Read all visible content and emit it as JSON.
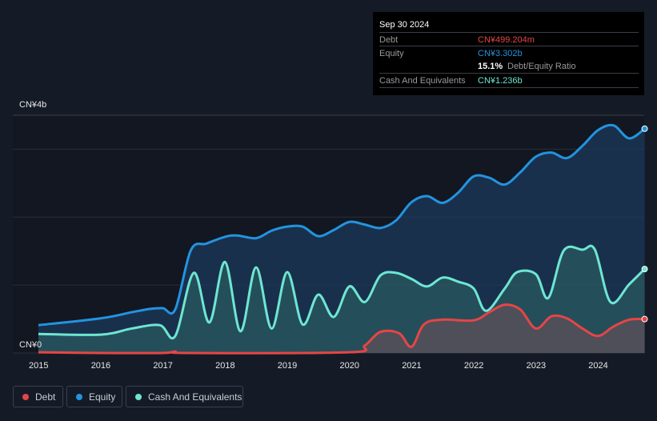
{
  "tooltip": {
    "date": "Sep 30 2024",
    "debt_label": "Debt",
    "debt_value": "CN¥499.204m",
    "equity_label": "Equity",
    "equity_value": "CN¥3.302b",
    "ratio_value": "15.1%",
    "ratio_label": "Debt/Equity Ratio",
    "cash_label": "Cash And Equivalents",
    "cash_value": "CN¥1.236b"
  },
  "colors": {
    "debt": "#e64545",
    "equity": "#2394df",
    "cash": "#6ee6d2"
  },
  "chart_data": {
    "type": "area",
    "y_top_label": "CN¥4b",
    "y_zero_label": "CN¥0",
    "ylim": [
      0,
      3.5
    ],
    "xlim": [
      2015,
      2024.75
    ],
    "x_ticks": [
      "2015",
      "2016",
      "2017",
      "2018",
      "2019",
      "2020",
      "2021",
      "2022",
      "2023",
      "2024"
    ],
    "legend": [
      "Debt",
      "Equity",
      "Cash And Equivalents"
    ],
    "series": [
      {
        "name": "Equity",
        "key": "equity",
        "points": [
          [
            2015,
            0.41
          ],
          [
            2016,
            0.51
          ],
          [
            2016.5,
            0.6
          ],
          [
            2016.8,
            0.65
          ],
          [
            2017,
            0.66
          ],
          [
            2017.2,
            0.64
          ],
          [
            2017.45,
            1.51
          ],
          [
            2017.7,
            1.61
          ],
          [
            2018,
            1.71
          ],
          [
            2018.2,
            1.73
          ],
          [
            2018.5,
            1.69
          ],
          [
            2018.75,
            1.8
          ],
          [
            2019,
            1.86
          ],
          [
            2019.25,
            1.86
          ],
          [
            2019.5,
            1.72
          ],
          [
            2019.75,
            1.81
          ],
          [
            2020,
            1.93
          ],
          [
            2020.25,
            1.89
          ],
          [
            2020.5,
            1.84
          ],
          [
            2020.75,
            1.95
          ],
          [
            2021,
            2.22
          ],
          [
            2021.25,
            2.31
          ],
          [
            2021.5,
            2.21
          ],
          [
            2021.75,
            2.36
          ],
          [
            2022,
            2.6
          ],
          [
            2022.25,
            2.58
          ],
          [
            2022.5,
            2.48
          ],
          [
            2022.75,
            2.66
          ],
          [
            2023,
            2.89
          ],
          [
            2023.25,
            2.95
          ],
          [
            2023.5,
            2.87
          ],
          [
            2023.75,
            3.05
          ],
          [
            2024,
            3.28
          ],
          [
            2024.25,
            3.35
          ],
          [
            2024.5,
            3.16
          ],
          [
            2024.75,
            3.302
          ]
        ]
      },
      {
        "name": "Cash And Equivalents",
        "key": "cash",
        "points": [
          [
            2015,
            0.28
          ],
          [
            2016,
            0.27
          ],
          [
            2016.5,
            0.36
          ],
          [
            2016.95,
            0.41
          ],
          [
            2017.2,
            0.25
          ],
          [
            2017.5,
            1.18
          ],
          [
            2017.75,
            0.45
          ],
          [
            2018,
            1.34
          ],
          [
            2018.25,
            0.32
          ],
          [
            2018.5,
            1.26
          ],
          [
            2018.75,
            0.36
          ],
          [
            2019,
            1.19
          ],
          [
            2019.25,
            0.42
          ],
          [
            2019.5,
            0.86
          ],
          [
            2019.75,
            0.53
          ],
          [
            2020,
            0.98
          ],
          [
            2020.25,
            0.75
          ],
          [
            2020.5,
            1.14
          ],
          [
            2020.75,
            1.18
          ],
          [
            2021,
            1.09
          ],
          [
            2021.25,
            0.98
          ],
          [
            2021.5,
            1.11
          ],
          [
            2021.75,
            1.05
          ],
          [
            2022,
            0.95
          ],
          [
            2022.2,
            0.62
          ],
          [
            2022.5,
            0.95
          ],
          [
            2022.7,
            1.19
          ],
          [
            2023,
            1.16
          ],
          [
            2023.2,
            0.81
          ],
          [
            2023.45,
            1.51
          ],
          [
            2023.75,
            1.52
          ],
          [
            2023.95,
            1.52
          ],
          [
            2024.2,
            0.75
          ],
          [
            2024.5,
            1.01
          ],
          [
            2024.75,
            1.236
          ]
        ]
      },
      {
        "name": "Debt",
        "key": "debt",
        "points": [
          [
            2015,
            0.01
          ],
          [
            2016,
            0
          ],
          [
            2017,
            0
          ],
          [
            2017.2,
            0.02
          ],
          [
            2017.4,
            0
          ],
          [
            2020,
            0.01
          ],
          [
            2020.25,
            0.11
          ],
          [
            2020.5,
            0.31
          ],
          [
            2020.8,
            0.29
          ],
          [
            2021,
            0.09
          ],
          [
            2021.2,
            0.42
          ],
          [
            2021.5,
            0.49
          ],
          [
            2022,
            0.48
          ],
          [
            2022.25,
            0.6
          ],
          [
            2022.5,
            0.71
          ],
          [
            2022.75,
            0.64
          ],
          [
            2023,
            0.36
          ],
          [
            2023.25,
            0.54
          ],
          [
            2023.5,
            0.51
          ],
          [
            2023.75,
            0.36
          ],
          [
            2024,
            0.25
          ],
          [
            2024.25,
            0.39
          ],
          [
            2024.5,
            0.49
          ],
          [
            2024.75,
            0.499
          ]
        ]
      }
    ]
  }
}
